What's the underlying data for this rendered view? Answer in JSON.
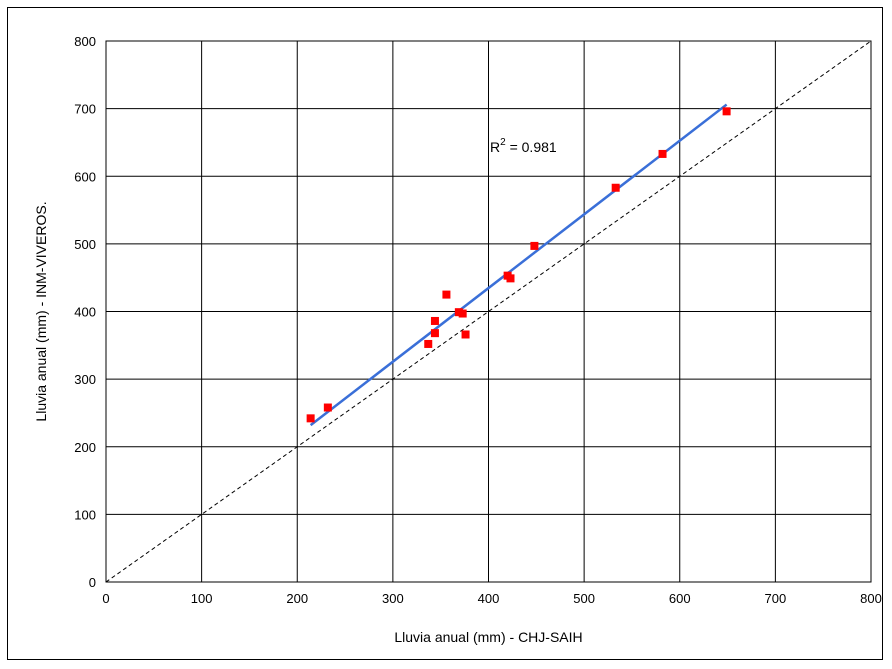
{
  "chart_data": {
    "type": "scatter",
    "xlabel": "Lluvia anual (mm) - CHJ-SAIH",
    "ylabel": "Lluvia anual (mm) - INM-VIVEROS.",
    "xlim": [
      0,
      800
    ],
    "ylim": [
      0,
      800
    ],
    "xticks": [
      "0",
      "100",
      "200",
      "300",
      "400",
      "500",
      "600",
      "700",
      "800"
    ],
    "yticks": [
      "0",
      "100",
      "200",
      "300",
      "400",
      "500",
      "600",
      "700",
      "800"
    ],
    "grid": true,
    "series": [
      {
        "points": [
          {
            "x": 214,
            "y": 242
          },
          {
            "x": 232,
            "y": 258
          },
          {
            "x": 337,
            "y": 352
          },
          {
            "x": 344,
            "y": 368
          },
          {
            "x": 344,
            "y": 386
          },
          {
            "x": 356,
            "y": 425
          },
          {
            "x": 369,
            "y": 399
          },
          {
            "x": 373,
            "y": 397
          },
          {
            "x": 376,
            "y": 366
          },
          {
            "x": 420,
            "y": 453
          },
          {
            "x": 423,
            "y": 449
          },
          {
            "x": 448,
            "y": 497
          },
          {
            "x": 533,
            "y": 583
          },
          {
            "x": 582,
            "y": 633
          },
          {
            "x": 649,
            "y": 696
          }
        ],
        "color": "#ff0000",
        "marker": "square"
      }
    ],
    "trendline": {
      "type": "linear",
      "from": {
        "x": 214,
        "y": 232
      },
      "to": {
        "x": 649,
        "y": 706
      },
      "color": "#3a6fd8"
    },
    "reference_line": {
      "type": "1:1",
      "from": {
        "x": 0,
        "y": 0
      },
      "to": {
        "x": 800,
        "y": 800
      },
      "style": "dashed",
      "color": "#000000"
    },
    "annotation": {
      "text": "R",
      "superscript": "2",
      "suffix": " = 0.981"
    }
  }
}
